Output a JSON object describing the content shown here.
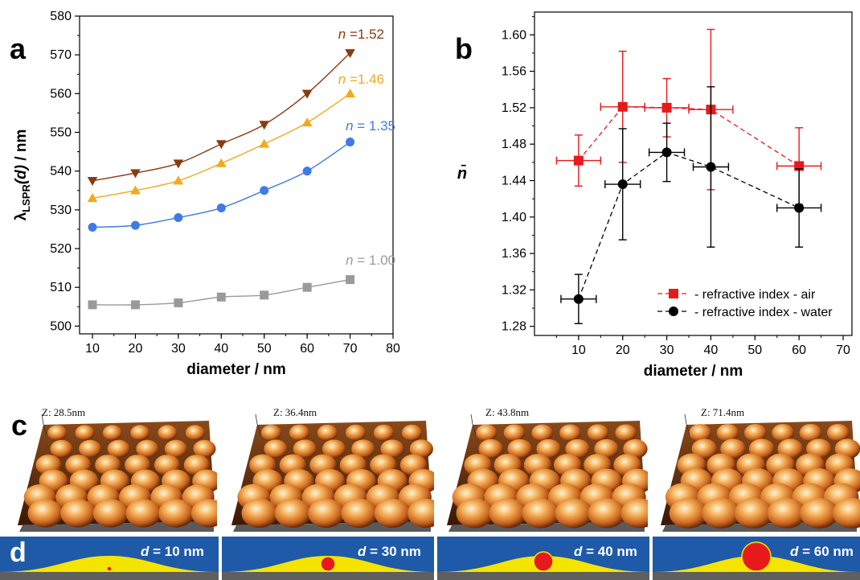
{
  "chart_data": [
    {
      "panel": "a",
      "type": "scatter",
      "xlabel": "diameter / nm",
      "ylabel": "λLSPR(d) / nm",
      "ylabel_main": "λ",
      "ylabel_sub": "LSPR",
      "ylabel_arg": "(d)",
      "ylabel_unit": " / nm",
      "xlim": [
        7,
        80
      ],
      "ylim": [
        498,
        580
      ],
      "xticks": [
        10,
        20,
        30,
        40,
        50,
        60,
        70,
        80
      ],
      "yticks": [
        500,
        510,
        520,
        530,
        540,
        550,
        560,
        570,
        580
      ],
      "grid": false,
      "series": [
        {
          "name": "n =1.52",
          "name_italic": "n",
          "name_rest": " =1.52",
          "color": "#8B3A10",
          "marker": "triangle-down",
          "x": [
            10,
            20,
            30,
            40,
            50,
            60,
            70
          ],
          "y": [
            537.5,
            539.5,
            542,
            547,
            552,
            560,
            570.5
          ]
        },
        {
          "name": "n =1.46",
          "name_italic": "n",
          "name_rest": " =1.46",
          "color": "#F4A81C",
          "marker": "triangle-up",
          "x": [
            10,
            20,
            30,
            40,
            50,
            60,
            70
          ],
          "y": [
            533,
            535,
            537.5,
            542,
            547,
            552.5,
            560
          ]
        },
        {
          "name": "n = 1.35",
          "name_italic": "n",
          "name_rest": " = 1.35",
          "color": "#3E7BE6",
          "marker": "circle",
          "x": [
            10,
            20,
            30,
            40,
            50,
            60,
            70
          ],
          "y": [
            525.5,
            526,
            528,
            530.5,
            535,
            540,
            547.5
          ]
        },
        {
          "name": "n = 1.00",
          "name_italic": "n",
          "name_rest": " = 1.00",
          "color": "#9A9A9A",
          "marker": "square",
          "x": [
            10,
            20,
            30,
            40,
            50,
            60,
            70
          ],
          "y": [
            505.5,
            505.5,
            506,
            507.5,
            508,
            510,
            512
          ]
        }
      ]
    },
    {
      "panel": "b",
      "type": "scatter",
      "xlabel": "diameter / nm",
      "ylabel": "n̄",
      "xlim": [
        0,
        72
      ],
      "ylim": [
        1.27,
        1.625
      ],
      "xticks": [
        10,
        20,
        30,
        40,
        50,
        60,
        70
      ],
      "yticks": [
        1.28,
        1.32,
        1.36,
        1.4,
        1.44,
        1.48,
        1.52,
        1.56,
        1.6
      ],
      "grid": false,
      "legend_position": "bottom-right",
      "series": [
        {
          "name": "refractive index - air",
          "color": "#E8191B",
          "marker": "square",
          "x": [
            10,
            20,
            30,
            40,
            60
          ],
          "y": [
            1.462,
            1.521,
            1.52,
            1.518,
            1.456
          ],
          "xerr": [
            5,
            5,
            5,
            5,
            5
          ],
          "yerr": [
            0.028,
            0.061,
            0.032,
            0.088,
            0.042
          ]
        },
        {
          "name": "refractive index - water",
          "color": "#000000",
          "marker": "circle",
          "x": [
            10,
            20,
            30,
            40,
            60
          ],
          "y": [
            1.31,
            1.436,
            1.471,
            1.455,
            1.41
          ],
          "xerr": [
            4,
            4,
            4,
            4,
            5
          ],
          "yerr": [
            0.027,
            0.061,
            0.032,
            0.088,
            0.043
          ]
        }
      ]
    }
  ],
  "panels": {
    "a": "a",
    "b": "b",
    "c": "c",
    "d": "d"
  },
  "afm": [
    {
      "z_label": "Z: 28.5nm"
    },
    {
      "z_label": "Z: 36.4nm"
    },
    {
      "z_label": "Z: 43.8nm"
    },
    {
      "z_label": "Z: 71.4nm"
    }
  ],
  "schematics": [
    {
      "d_var": "d",
      "d_text": " = 10 nm",
      "diameter_nm": 10
    },
    {
      "d_var": "d",
      "d_text": " = 30 nm",
      "diameter_nm": 30
    },
    {
      "d_var": "d",
      "d_text": " = 40 nm",
      "diameter_nm": 40
    },
    {
      "d_var": "d",
      "d_text": " = 60 nm",
      "diameter_nm": 60
    }
  ],
  "colors": {
    "schematic_bg": "#1E5AA8",
    "schematic_hill": "#F5E400",
    "schematic_particle": "#E8191B",
    "schematic_base": "#5F5F5F"
  }
}
